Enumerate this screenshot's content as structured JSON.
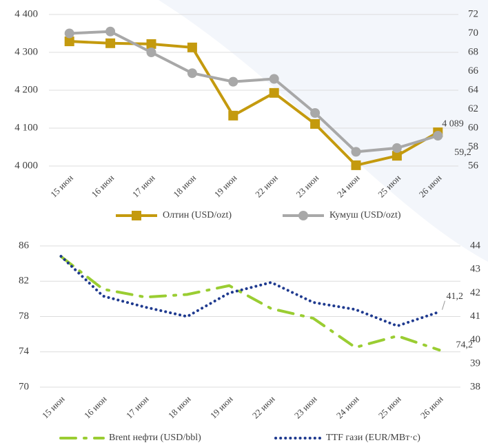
{
  "chart_data": [
    {
      "type": "line",
      "categories": [
        "15 июн",
        "16 июн",
        "17 июн",
        "18 июн",
        "19 июн",
        "22 июн",
        "23 июн",
        "24 июн",
        "25 июн",
        "26 июн"
      ],
      "ylim": [
        4000,
        4400
      ],
      "yticks": [
        {
          "value": 4000,
          "label": "4 000"
        },
        {
          "value": 4100,
          "label": "4 100"
        },
        {
          "value": 4200,
          "label": "4 200"
        },
        {
          "value": 4300,
          "label": "4 300"
        },
        {
          "value": 4400,
          "label": "4 400"
        }
      ],
      "y2lim": [
        56,
        72
      ],
      "y2ticks": [
        56,
        58,
        60,
        62,
        64,
        66,
        68,
        70,
        72
      ],
      "grid": true,
      "series": [
        {
          "name": "Олтин (USD/ozt)",
          "color": "#c49a0e",
          "marker": "square",
          "line_style": "solid",
          "values": [
            4329,
            4324,
            4322,
            4313,
            4133,
            4193,
            4111,
            4002,
            4027,
            4089
          ],
          "value_labels": [
            null,
            null,
            null,
            null,
            null,
            null,
            null,
            null,
            null,
            "4 089"
          ]
        },
        {
          "name": "Кумуш (USD/ozt)",
          "color": "#a8a8a8",
          "marker": "circle",
          "line_style": "solid",
          "axis": "y2",
          "values": [
            70.0,
            70.2,
            68.0,
            65.8,
            64.9,
            65.2,
            61.6,
            57.5,
            57.9,
            59.2
          ],
          "value_labels": [
            null,
            null,
            null,
            null,
            null,
            null,
            null,
            null,
            null,
            "59,2"
          ]
        }
      ]
    },
    {
      "type": "line",
      "categories": [
        "15 июн",
        "16 июн",
        "17 июн",
        "18 июн",
        "19 июн",
        "22 июн",
        "23 июн",
        "24 июн",
        "25 июн",
        "26 июн"
      ],
      "ylim": [
        70,
        86
      ],
      "yticks": [
        70,
        74,
        78,
        82,
        86
      ],
      "y2lim": [
        38,
        44
      ],
      "y2ticks": [
        38,
        39,
        40,
        41,
        42,
        43,
        44
      ],
      "grid": true,
      "series": [
        {
          "name": "Brent нефти (USD/bbl)",
          "color": "#9acd32",
          "marker": "none",
          "line_style": "dash-dot",
          "values": [
            84.8,
            81.1,
            80.2,
            80.5,
            81.5,
            78.9,
            77.8,
            74.5,
            75.8,
            74.2
          ],
          "value_labels": [
            null,
            null,
            null,
            null,
            null,
            null,
            null,
            null,
            null,
            "74,2"
          ]
        },
        {
          "name": "TTF гази (EUR/MBт·с)",
          "color": "#1f3a8f",
          "marker": "none",
          "line_style": "dotted",
          "axis": "y2",
          "values": [
            43.56,
            41.87,
            41.4,
            41.0,
            42.0,
            42.45,
            41.6,
            41.3,
            40.6,
            41.2
          ],
          "value_labels": [
            null,
            null,
            null,
            null,
            null,
            null,
            null,
            null,
            null,
            "41,2"
          ]
        }
      ]
    }
  ]
}
